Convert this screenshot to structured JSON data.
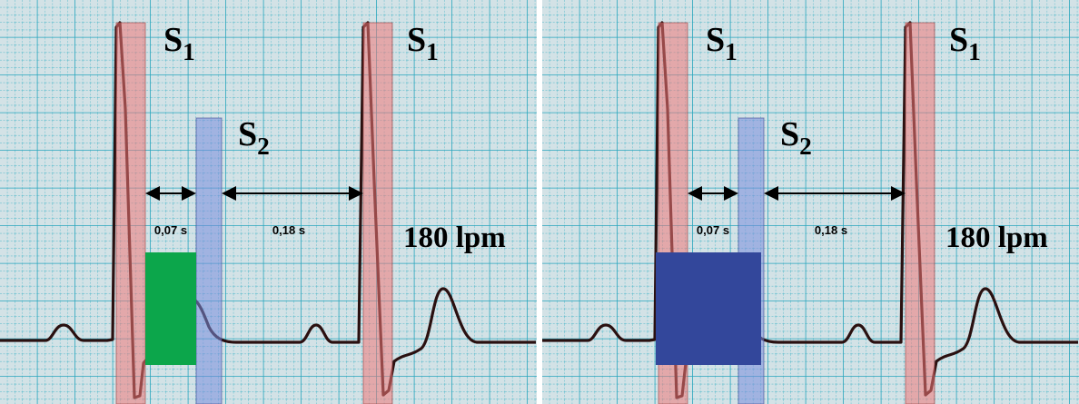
{
  "panels": [
    {
      "s1a": {
        "main": "S",
        "sub": "1"
      },
      "s1b": {
        "main": "S",
        "sub": "1"
      },
      "s2": {
        "main": "S",
        "sub": "2"
      },
      "interval_short": "0,07 s",
      "interval_long": "0,18 s",
      "rate": "180 lpm"
    },
    {
      "s1a": {
        "main": "S",
        "sub": "1"
      },
      "s1b": {
        "main": "S",
        "sub": "1"
      },
      "s2": {
        "main": "S",
        "sub": "2"
      },
      "interval_short": "0,07 s",
      "interval_long": "0,18 s",
      "rate": "180 lpm"
    }
  ]
}
